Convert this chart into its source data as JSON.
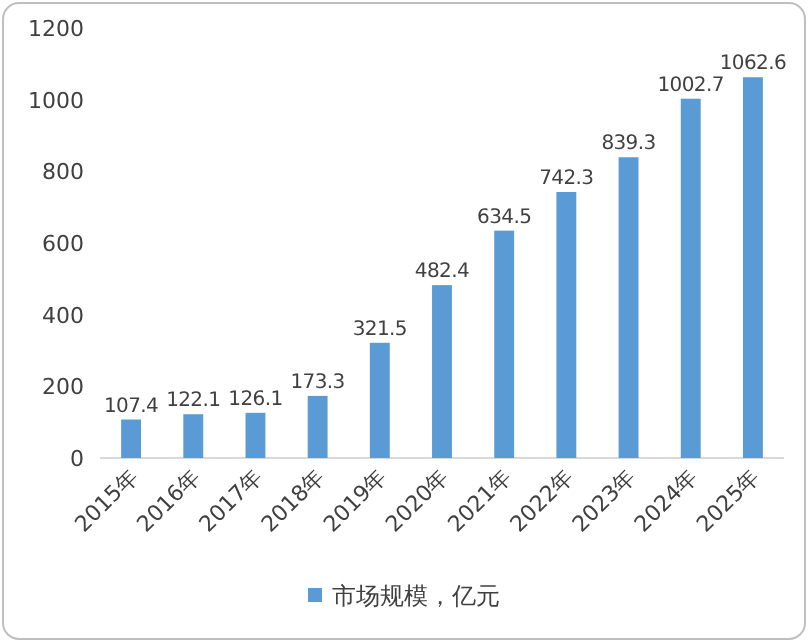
{
  "chart_data": {
    "type": "bar",
    "categories": [
      "2015年",
      "2016年",
      "2017年",
      "2018年",
      "2019年",
      "2020年",
      "2021年",
      "2022年",
      "2023年",
      "2024年",
      "2025年"
    ],
    "series": [
      {
        "name": "市场规模，亿元",
        "color": "#5b9bd5",
        "values": [
          107.4,
          122.1,
          126.1,
          173.3,
          321.5,
          482.4,
          634.5,
          742.3,
          839.3,
          1002.7,
          1062.6
        ]
      }
    ],
    "ylim": [
      0,
      1200
    ],
    "yticks": [
      0,
      200,
      400,
      600,
      800,
      1000,
      1200
    ],
    "data_labels": true,
    "legend": "bottom",
    "grid": false
  }
}
